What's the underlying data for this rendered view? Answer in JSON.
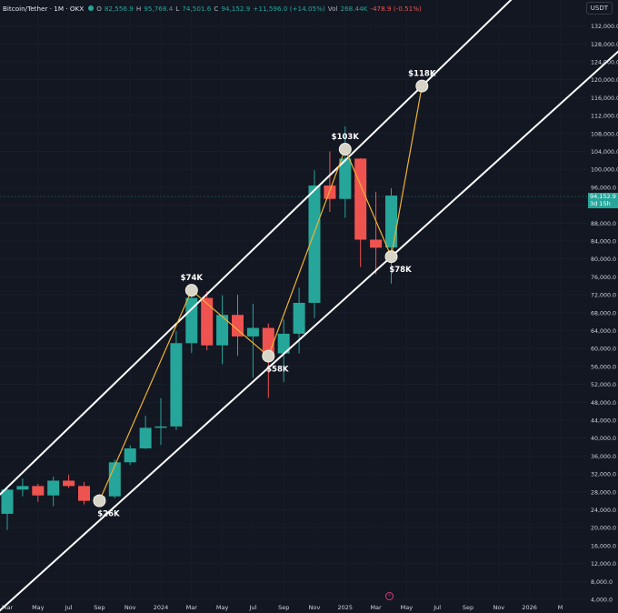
{
  "header": {
    "symbol": "Bitcoin/Tether · 1M · OKX",
    "open_label": "O",
    "open": "82,556.9",
    "high_label": "H",
    "high": "95,768.4",
    "low_label": "L",
    "low": "74,501.6",
    "close_label": "C",
    "close": "94,152.9",
    "change": "+11,596.0 (+14.05%)",
    "vol_label": "Vol",
    "vol": "268.44K",
    "vol_change": "-478.9 (-0.51%)"
  },
  "currency_button": "USDT",
  "last_price": {
    "value": "94,152.9",
    "countdown": "3d 15h"
  },
  "colors": {
    "up": "#26a69a",
    "down": "#ef5350",
    "background": "#131722",
    "channel": "#ffffff",
    "path": "#f0b232",
    "text": "#d1d4dc"
  },
  "chart_data": {
    "type": "candlestick",
    "x_tick_labels": [
      "Mar",
      "May",
      "Jul",
      "Sep",
      "Nov",
      "2024",
      "Mar",
      "May",
      "Jul",
      "Sep",
      "Nov",
      "2025",
      "Mar",
      "May",
      "Jul",
      "Sep",
      "Nov",
      "2026",
      "M"
    ],
    "y_axis": {
      "range": [
        4000,
        136000
      ],
      "ticks": [
        4000,
        8000,
        12000,
        16000,
        20000,
        24000,
        28000,
        32000,
        36000,
        40000,
        44000,
        48000,
        52000,
        56000,
        60000,
        64000,
        68000,
        72000,
        76000,
        80000,
        84000,
        88000,
        92000,
        96000,
        100000,
        104000,
        108000,
        112000,
        116000,
        120000,
        124000,
        128000,
        132000
      ]
    },
    "candles": [
      {
        "date": "2023-03",
        "open": 23100,
        "high": 29200,
        "low": 19500,
        "close": 28500
      },
      {
        "date": "2023-04",
        "open": 28500,
        "high": 31000,
        "low": 27000,
        "close": 29300
      },
      {
        "date": "2023-05",
        "open": 29300,
        "high": 29800,
        "low": 25800,
        "close": 27200
      },
      {
        "date": "2023-06",
        "open": 27200,
        "high": 31400,
        "low": 24800,
        "close": 30500
      },
      {
        "date": "2023-07",
        "open": 30500,
        "high": 31800,
        "low": 28900,
        "close": 29300
      },
      {
        "date": "2023-08",
        "open": 29300,
        "high": 30200,
        "low": 25200,
        "close": 26000
      },
      {
        "date": "2023-09",
        "open": 26000,
        "high": 27500,
        "low": 24900,
        "close": 27000
      },
      {
        "date": "2023-10",
        "open": 27000,
        "high": 35200,
        "low": 26600,
        "close": 34600
      },
      {
        "date": "2023-11",
        "open": 34600,
        "high": 38400,
        "low": 34000,
        "close": 37700
      },
      {
        "date": "2023-12",
        "open": 37700,
        "high": 45000,
        "low": 37600,
        "close": 42300
      },
      {
        "date": "2024-01",
        "open": 42300,
        "high": 48900,
        "low": 38500,
        "close": 42600
      },
      {
        "date": "2024-02",
        "open": 42600,
        "high": 63900,
        "low": 41800,
        "close": 61200
      },
      {
        "date": "2024-03",
        "open": 61200,
        "high": 73800,
        "low": 59000,
        "close": 71300
      },
      {
        "date": "2024-04",
        "open": 71300,
        "high": 72800,
        "low": 59600,
        "close": 60700
      },
      {
        "date": "2024-05",
        "open": 60700,
        "high": 71900,
        "low": 56500,
        "close": 67500
      },
      {
        "date": "2024-06",
        "open": 67500,
        "high": 72000,
        "low": 58400,
        "close": 62700
      },
      {
        "date": "2024-07",
        "open": 62700,
        "high": 70000,
        "low": 53500,
        "close": 64600
      },
      {
        "date": "2024-08",
        "open": 64600,
        "high": 65600,
        "low": 49000,
        "close": 58900
      },
      {
        "date": "2024-09",
        "open": 58900,
        "high": 66500,
        "low": 52500,
        "close": 63300
      },
      {
        "date": "2024-10",
        "open": 63300,
        "high": 73600,
        "low": 58900,
        "close": 70200
      },
      {
        "date": "2024-11",
        "open": 70200,
        "high": 99800,
        "low": 66800,
        "close": 96400
      },
      {
        "date": "2024-12",
        "open": 96400,
        "high": 104000,
        "low": 90500,
        "close": 93400
      },
      {
        "date": "2025-01",
        "open": 93400,
        "high": 109600,
        "low": 89200,
        "close": 102400
      },
      {
        "date": "2025-02",
        "open": 102400,
        "high": 102500,
        "low": 78200,
        "close": 84300
      },
      {
        "date": "2025-03",
        "open": 84300,
        "high": 95000,
        "low": 76600,
        "close": 82500
      },
      {
        "date": "2025-04",
        "open": 82556.9,
        "high": 95768.4,
        "low": 74501.6,
        "close": 94152.9
      }
    ],
    "annotations": [
      {
        "label": "$26K",
        "date": "2023-09",
        "value": 26000
      },
      {
        "label": "$74K",
        "date": "2024-03",
        "value": 73000
      },
      {
        "label": "$58K",
        "date": "2024-08",
        "value": 58300
      },
      {
        "label": "$103K",
        "date": "2025-01",
        "value": 104500
      },
      {
        "label": "$78K",
        "date": "2025-04",
        "value": 80500
      },
      {
        "label": "$118K",
        "date": "2025-06",
        "value": 118600
      }
    ],
    "channel": {
      "upper": [
        {
          "date": "2023-03",
          "value": 29000
        },
        {
          "date": "2025-06",
          "value": 118600
        }
      ],
      "lower": [
        {
          "date": "2023-03",
          "value": 3000
        },
        {
          "date": "2025-04",
          "value": 80500
        }
      ]
    }
  }
}
